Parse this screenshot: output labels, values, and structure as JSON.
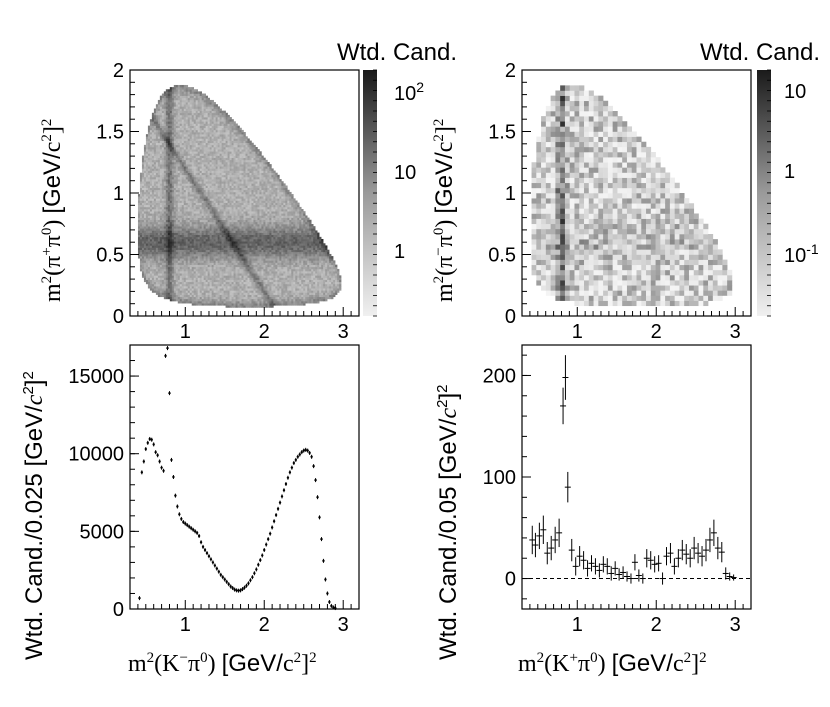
{
  "chart_data": [
    {
      "id": "top-left",
      "type": "heatmap",
      "zlabel": "Wtd. Cand.",
      "xlim": [
        0.3,
        3.2
      ],
      "ylim": [
        0,
        2
      ],
      "x_ticks": [
        "1",
        "2",
        "3"
      ],
      "y_ticks": [
        "0",
        "0.5",
        "1",
        "1.5",
        "2"
      ],
      "ylabel": "m²(π⁺π⁰) [GeV/c²]²",
      "z_scale": "log",
      "z_ticks": [
        "1",
        "10",
        "10²"
      ]
    },
    {
      "id": "top-right",
      "type": "heatmap",
      "zlabel": "Wtd. Cand.",
      "xlim": [
        0.3,
        3.2
      ],
      "ylim": [
        0,
        2
      ],
      "x_ticks": [
        "1",
        "2",
        "3"
      ],
      "y_ticks": [
        "0",
        "0.5",
        "1",
        "1.5",
        "2"
      ],
      "ylabel": "m²(π⁻π⁰) [GeV/c²]²",
      "z_scale": "log",
      "z_ticks": [
        "10⁻¹",
        "1",
        "10"
      ]
    },
    {
      "id": "bottom-left",
      "type": "scatter",
      "xlim": [
        0.3,
        3.2
      ],
      "ylim": [
        0,
        17000
      ],
      "x_ticks": [
        "1",
        "2",
        "3"
      ],
      "y_ticks": [
        "0",
        "5000",
        "10000",
        "15000"
      ],
      "xlabel": "m²(K⁻π⁰) [GeV/c²]²",
      "ylabel": "Wtd. Cand./0.025 [GeV/c²]²",
      "points": [
        [
          0.42,
          700
        ],
        [
          0.45,
          8800
        ],
        [
          0.475,
          9500
        ],
        [
          0.5,
          10300
        ],
        [
          0.525,
          10700
        ],
        [
          0.55,
          10950
        ],
        [
          0.575,
          10900
        ],
        [
          0.6,
          10600
        ],
        [
          0.625,
          10100
        ],
        [
          0.65,
          9900
        ],
        [
          0.675,
          9500
        ],
        [
          0.7,
          9100
        ],
        [
          0.725,
          8900
        ],
        [
          0.75,
          16300
        ],
        [
          0.775,
          16800
        ],
        [
          0.8,
          13900
        ],
        [
          0.825,
          9600
        ],
        [
          0.85,
          8500
        ],
        [
          0.875,
          7300
        ],
        [
          0.9,
          6600
        ],
        [
          0.925,
          6100
        ],
        [
          0.95,
          5800
        ],
        [
          0.975,
          5600
        ],
        [
          1.0,
          5500
        ],
        [
          1.025,
          5400
        ],
        [
          1.05,
          5300
        ],
        [
          1.075,
          5200
        ],
        [
          1.1,
          5100
        ],
        [
          1.125,
          5000
        ],
        [
          1.15,
          4900
        ],
        [
          1.175,
          4700
        ],
        [
          1.2,
          4300
        ],
        [
          1.225,
          4000
        ],
        [
          1.25,
          3800
        ],
        [
          1.275,
          3600
        ],
        [
          1.3,
          3400
        ],
        [
          1.325,
          3200
        ],
        [
          1.35,
          3000
        ],
        [
          1.375,
          2800
        ],
        [
          1.4,
          2600
        ],
        [
          1.425,
          2400
        ],
        [
          1.45,
          2200
        ],
        [
          1.475,
          2050
        ],
        [
          1.5,
          1900
        ],
        [
          1.525,
          1750
        ],
        [
          1.55,
          1600
        ],
        [
          1.575,
          1450
        ],
        [
          1.6,
          1350
        ],
        [
          1.625,
          1250
        ],
        [
          1.65,
          1200
        ],
        [
          1.675,
          1180
        ],
        [
          1.7,
          1200
        ],
        [
          1.725,
          1280
        ],
        [
          1.75,
          1380
        ],
        [
          1.775,
          1500
        ],
        [
          1.8,
          1650
        ],
        [
          1.825,
          1850
        ],
        [
          1.85,
          2050
        ],
        [
          1.875,
          2300
        ],
        [
          1.9,
          2550
        ],
        [
          1.925,
          2850
        ],
        [
          1.95,
          3150
        ],
        [
          1.975,
          3450
        ],
        [
          2.0,
          3800
        ],
        [
          2.025,
          4150
        ],
        [
          2.05,
          4500
        ],
        [
          2.075,
          4850
        ],
        [
          2.1,
          5250
        ],
        [
          2.125,
          5650
        ],
        [
          2.15,
          6050
        ],
        [
          2.175,
          6450
        ],
        [
          2.2,
          6850
        ],
        [
          2.225,
          7250
        ],
        [
          2.25,
          7650
        ],
        [
          2.275,
          8050
        ],
        [
          2.3,
          8450
        ],
        [
          2.325,
          8800
        ],
        [
          2.35,
          9100
        ],
        [
          2.375,
          9400
        ],
        [
          2.4,
          9600
        ],
        [
          2.425,
          9800
        ],
        [
          2.45,
          9950
        ],
        [
          2.475,
          10100
        ],
        [
          2.5,
          10200
        ],
        [
          2.525,
          10250
        ],
        [
          2.55,
          10200
        ],
        [
          2.575,
          10050
        ],
        [
          2.6,
          9800
        ],
        [
          2.625,
          9200
        ],
        [
          2.65,
          8300
        ],
        [
          2.675,
          7200
        ],
        [
          2.7,
          5900
        ],
        [
          2.725,
          4500
        ],
        [
          2.75,
          3100
        ],
        [
          2.775,
          1900
        ],
        [
          2.8,
          1000
        ],
        [
          2.825,
          450
        ],
        [
          2.85,
          200
        ],
        [
          2.875,
          100
        ],
        [
          2.9,
          60
        ]
      ]
    },
    {
      "id": "bottom-right",
      "type": "scatter",
      "xlim": [
        0.3,
        3.2
      ],
      "ylim": [
        -30,
        230
      ],
      "x_ticks": [
        "1",
        "2",
        "3"
      ],
      "y_ticks": [
        "0",
        "100",
        "200"
      ],
      "xlabel": "m²(K⁺π⁰) [GeV/c²]²",
      "ylabel": "Wtd. Cand./0.05 [GeV/c²]²",
      "reference_line": 0,
      "points": [
        [
          0.43,
          38,
          14
        ],
        [
          0.47,
          33,
          12
        ],
        [
          0.52,
          42,
          13
        ],
        [
          0.57,
          48,
          14
        ],
        [
          0.62,
          25,
          11
        ],
        [
          0.67,
          30,
          12
        ],
        [
          0.72,
          38,
          13
        ],
        [
          0.77,
          45,
          14
        ],
        [
          0.82,
          170,
          18
        ],
        [
          0.85,
          198,
          22
        ],
        [
          0.88,
          90,
          15
        ],
        [
          0.93,
          28,
          11
        ],
        [
          0.98,
          12,
          9
        ],
        [
          1.03,
          22,
          10
        ],
        [
          1.08,
          18,
          9
        ],
        [
          1.13,
          10,
          8
        ],
        [
          1.18,
          15,
          8
        ],
        [
          1.23,
          12,
          8
        ],
        [
          1.28,
          8,
          7
        ],
        [
          1.33,
          14,
          8
        ],
        [
          1.38,
          12,
          8
        ],
        [
          1.43,
          5,
          7
        ],
        [
          1.48,
          10,
          7
        ],
        [
          1.53,
          4,
          6
        ],
        [
          1.58,
          6,
          6
        ],
        [
          1.63,
          2,
          5
        ],
        [
          1.68,
          0,
          5
        ],
        [
          1.73,
          16,
          8
        ],
        [
          1.78,
          3,
          6
        ],
        [
          1.83,
          0,
          5
        ],
        [
          1.88,
          20,
          9
        ],
        [
          1.93,
          18,
          9
        ],
        [
          1.98,
          14,
          8
        ],
        [
          2.03,
          15,
          8
        ],
        [
          2.08,
          0,
          6
        ],
        [
          2.13,
          22,
          9
        ],
        [
          2.18,
          25,
          10
        ],
        [
          2.23,
          12,
          8
        ],
        [
          2.28,
          20,
          9
        ],
        [
          2.33,
          28,
          10
        ],
        [
          2.38,
          24,
          10
        ],
        [
          2.43,
          20,
          9
        ],
        [
          2.48,
          30,
          11
        ],
        [
          2.53,
          25,
          10
        ],
        [
          2.58,
          22,
          10
        ],
        [
          2.63,
          28,
          11
        ],
        [
          2.68,
          38,
          12
        ],
        [
          2.73,
          45,
          13
        ],
        [
          2.78,
          30,
          11
        ],
        [
          2.83,
          26,
          10
        ],
        [
          2.88,
          5,
          6
        ],
        [
          2.93,
          2,
          4
        ],
        [
          2.98,
          1,
          3
        ]
      ]
    }
  ]
}
